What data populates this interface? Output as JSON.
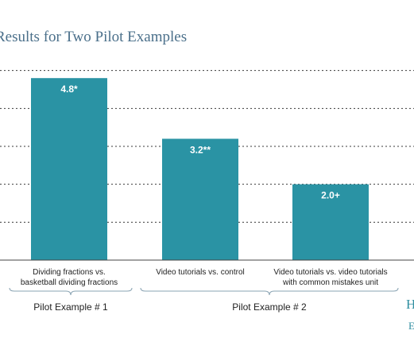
{
  "chart_data": {
    "type": "bar",
    "title": "Results for Two Pilot Examples",
    "categories": [
      [
        "Dividing fractions vs.",
        "basketball dividing fractions"
      ],
      [
        "Video tutorials vs. control"
      ],
      [
        "Video tutorials vs. video tutorials",
        "with common mistakes unit"
      ]
    ],
    "values": [
      4.8,
      3.2,
      2.0
    ],
    "data_labels": [
      "4.8*",
      "3.2**",
      "2.0+"
    ],
    "ylim": [
      0,
      6
    ],
    "grid": true,
    "bar_color": "#2a93a4",
    "groups": [
      {
        "label": "Pilot Example # 1",
        "members": [
          0
        ]
      },
      {
        "label": "Pilot Example # 2",
        "members": [
          1,
          2
        ]
      }
    ]
  },
  "branding": {
    "logo_top": "H",
    "logo_bottom": "E"
  }
}
